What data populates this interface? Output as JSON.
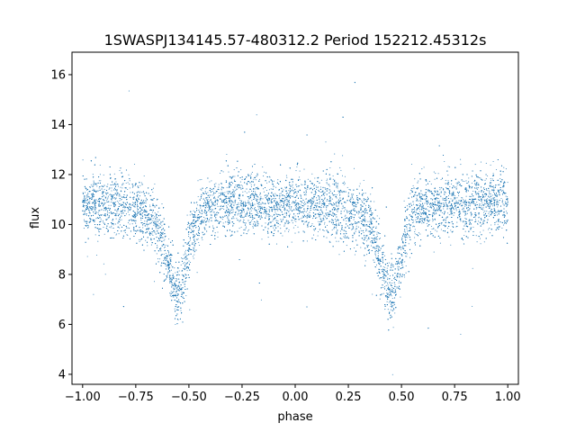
{
  "chart_data": {
    "type": "scatter",
    "title": "1SWASPJ134145.57-480312.2 Period 152212.45312s",
    "xlabel": "phase",
    "ylabel": "flux",
    "xlim": [
      -1.05,
      1.05
    ],
    "ylim": [
      3.6,
      16.9
    ],
    "x_ticks": [
      -1.0,
      -0.75,
      -0.5,
      -0.25,
      0.0,
      0.25,
      0.5,
      0.75,
      1.0
    ],
    "x_tick_labels": [
      "−1.00",
      "−0.75",
      "−0.50",
      "−0.25",
      "0.00",
      "0.25",
      "0.50",
      "0.75",
      "1.00"
    ],
    "y_ticks": [
      4,
      6,
      8,
      10,
      12,
      14,
      16
    ],
    "y_tick_labels": [
      "4",
      "6",
      "8",
      "10",
      "12",
      "14",
      "16"
    ],
    "grid": false,
    "marker_color": "#1f77b4",
    "series": [
      {
        "x": [
          -1.0,
          -0.9,
          -0.8,
          -0.7,
          -0.65,
          -0.62,
          -0.6,
          -0.58,
          -0.56,
          -0.55,
          -0.54,
          -0.52,
          -0.5,
          -0.48,
          -0.45,
          -0.4,
          -0.3,
          -0.2,
          -0.1,
          0.0,
          0.1,
          0.2,
          0.3,
          0.35,
          0.38,
          0.4,
          0.42,
          0.44,
          0.45,
          0.46,
          0.48,
          0.5,
          0.52,
          0.55,
          0.6,
          0.7,
          0.8,
          0.9,
          1.0
        ],
        "y": [
          10.9,
          10.8,
          10.7,
          10.5,
          10.0,
          9.2,
          8.5,
          7.8,
          7.3,
          7.2,
          7.4,
          8.2,
          9.0,
          9.7,
          10.3,
          10.7,
          10.8,
          10.8,
          10.7,
          10.9,
          10.7,
          10.6,
          10.5,
          10.0,
          9.3,
          8.6,
          8.0,
          7.4,
          7.2,
          7.3,
          7.9,
          8.8,
          9.6,
          10.3,
          10.7,
          10.8,
          10.8,
          10.9,
          10.9
        ]
      }
    ]
  }
}
